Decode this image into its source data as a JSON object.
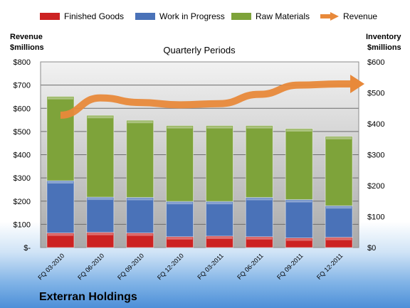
{
  "chart_data": {
    "type": "bar",
    "stacked": true,
    "company": "Exterran Holdings",
    "plot_title": "Quarterly Periods",
    "left_axis_title": [
      "Revenue",
      "$millions"
    ],
    "right_axis_title": [
      "Inventory",
      "$millions"
    ],
    "categories": [
      "FQ 03-2010",
      "FQ 06-2010",
      "FQ 09-2010",
      "FQ 12-2010",
      "FQ 03-2011",
      "FQ 06-2011",
      "FQ 09-2011",
      "FQ 12-2011"
    ],
    "left_axis": {
      "min": 0,
      "max": 800,
      "step": 100,
      "labels": [
        "$-",
        "$100",
        "$200",
        "$300",
        "$400",
        "$500",
        "$600",
        "$700",
        "$800"
      ]
    },
    "right_axis": {
      "min": 0,
      "max": 600,
      "step": 100,
      "labels": [
        "$0",
        "$100",
        "$200",
        "$300",
        "$400",
        "$500",
        "$600"
      ]
    },
    "series": [
      {
        "name": "Finished Goods",
        "color": "#cc2222",
        "axis": "right",
        "values": [
          47,
          49,
          47,
          35,
          37,
          35,
          31,
          33
        ]
      },
      {
        "name": "Work in Progress",
        "color": "#4a72b8",
        "axis": "right",
        "values": [
          169,
          114,
          115,
          114,
          112,
          127,
          124,
          102
        ]
      },
      {
        "name": "Raw Materials",
        "color": "#7ea33a",
        "axis": "right",
        "values": [
          272,
          264,
          249,
          245,
          245,
          232,
          229,
          224
        ]
      },
      {
        "name": "Revenue",
        "color": "#e8893a",
        "axis": "left",
        "type": "line-arrow",
        "values": [
          570,
          645,
          625,
          615,
          620,
          660,
          700,
          705
        ]
      }
    ],
    "grid": true,
    "legend_position": "top"
  }
}
